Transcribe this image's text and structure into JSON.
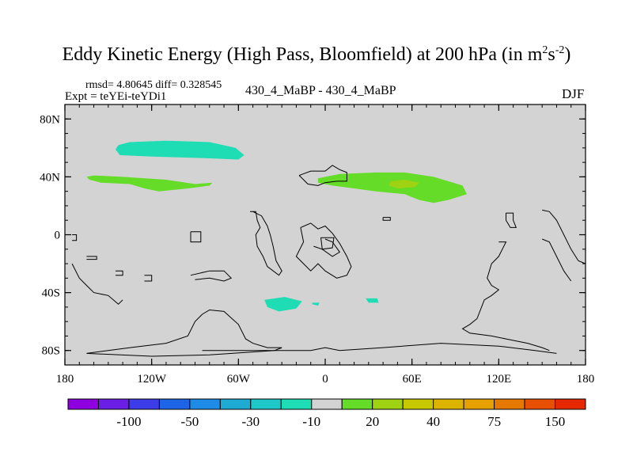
{
  "chart_data": {
    "type": "heatmap",
    "title": "Eddy Kinetic Energy (High Pass, Bloomfield) at 200 hPa (in m",
    "title_units_sup1": "2",
    "title_units_s": "s",
    "title_units_sup2": "-2",
    "title_close": ")",
    "stats_label": "rmsd= 4.80645 diff= 0.328545",
    "expt_label": "Expt = teYEi-teYDi1",
    "comparison_label": "430_4_MaBP - 430_4_MaBP",
    "season": "DJF",
    "x_range": [
      -180,
      180
    ],
    "y_range": [
      -90,
      90
    ],
    "x_ticks": [
      {
        "value": -180,
        "label": "180"
      },
      {
        "value": -120,
        "label": "120W"
      },
      {
        "value": -60,
        "label": "60W"
      },
      {
        "value": 0,
        "label": "0"
      },
      {
        "value": 60,
        "label": "60E"
      },
      {
        "value": 120,
        "label": "120E"
      },
      {
        "value": 180,
        "label": "180"
      }
    ],
    "y_ticks": [
      {
        "value": 80,
        "label": "80N"
      },
      {
        "value": 40,
        "label": "40N"
      },
      {
        "value": 0,
        "label": "0"
      },
      {
        "value": -40,
        "label": "40S"
      },
      {
        "value": -80,
        "label": "80S"
      }
    ],
    "background_color": "#d3d3d3",
    "colorbar": {
      "colors": [
        "#8e00e0",
        "#6a1ee6",
        "#3c3ce8",
        "#1e64e6",
        "#1e8ce6",
        "#1eaad2",
        "#1ec8c8",
        "#1edcb4",
        "#d3d3d3",
        "#64dc28",
        "#a0d214",
        "#c8c800",
        "#dcb400",
        "#e6a000",
        "#e67800",
        "#e65000",
        "#e62800"
      ],
      "labels": [
        {
          "after_box": 1,
          "text": "-100"
        },
        {
          "after_box": 3,
          "text": "-50"
        },
        {
          "after_box": 5,
          "text": "-30"
        },
        {
          "after_box": 7,
          "text": "-10"
        },
        {
          "after_box": 9,
          "text": "20"
        },
        {
          "after_box": 11,
          "text": "40"
        },
        {
          "after_box": 13,
          "text": "75"
        },
        {
          "after_box": 15,
          "text": "150"
        }
      ]
    },
    "anomaly_regions": [
      {
        "name": "north-pacific-negative",
        "level": "-10",
        "color": "#1edcb4",
        "polygon": [
          [
            -143,
            62
          ],
          [
            -135,
            64
          ],
          [
            -110,
            65
          ],
          [
            -80,
            64
          ],
          [
            -62,
            60
          ],
          [
            -56,
            55
          ],
          [
            -60,
            52
          ],
          [
            -85,
            53
          ],
          [
            -120,
            54
          ],
          [
            -142,
            55
          ],
          [
            -145,
            59
          ]
        ]
      },
      {
        "name": "north-pacific-positive",
        "level": "20",
        "color": "#64dc28",
        "polygon": [
          [
            -163,
            38
          ],
          [
            -155,
            36
          ],
          [
            -135,
            35
          ],
          [
            -125,
            32
          ],
          [
            -115,
            30
          ],
          [
            -95,
            32
          ],
          [
            -80,
            34
          ],
          [
            -78,
            36
          ],
          [
            -90,
            35
          ],
          [
            -110,
            38
          ],
          [
            -140,
            40
          ],
          [
            -160,
            41
          ],
          [
            -165,
            40
          ]
        ]
      },
      {
        "name": "eurasia-positive",
        "level": "20",
        "color": "#64dc28",
        "polygon": [
          [
            -5,
            39
          ],
          [
            10,
            42
          ],
          [
            35,
            43
          ],
          [
            55,
            43
          ],
          [
            75,
            40
          ],
          [
            95,
            34
          ],
          [
            98,
            28
          ],
          [
            85,
            24
          ],
          [
            75,
            22
          ],
          [
            65,
            24
          ],
          [
            55,
            28
          ],
          [
            35,
            30
          ],
          [
            20,
            32
          ],
          [
            5,
            34
          ],
          [
            -5,
            36
          ]
        ]
      },
      {
        "name": "eurasia-core",
        "level": "30",
        "color": "#a0d214",
        "polygon": [
          [
            45,
            37
          ],
          [
            55,
            38
          ],
          [
            65,
            36
          ],
          [
            62,
            33
          ],
          [
            50,
            32
          ],
          [
            44,
            34
          ]
        ]
      },
      {
        "name": "south-atlantic-negative",
        "level": "-10",
        "color": "#1edcb4",
        "polygon": [
          [
            -42,
            -45
          ],
          [
            -28,
            -43
          ],
          [
            -16,
            -46
          ],
          [
            -20,
            -51
          ],
          [
            -32,
            -53
          ],
          [
            -40,
            -50
          ]
        ]
      },
      {
        "name": "south-atlantic-small",
        "level": "-10",
        "color": "#1edcb4",
        "polygon": [
          [
            -9,
            -47
          ],
          [
            -4,
            -47
          ],
          [
            -5,
            -49
          ],
          [
            -9,
            -48
          ]
        ]
      },
      {
        "name": "indian-ocean-small",
        "level": "-10",
        "color": "#1edcb4",
        "polygon": [
          [
            28,
            -44
          ],
          [
            36,
            -44
          ],
          [
            37,
            -47
          ],
          [
            30,
            -47
          ]
        ]
      }
    ],
    "land_outlines": [
      [
        [
          -175,
          0
        ],
        [
          -172,
          0
        ],
        [
          -172,
          -4
        ],
        [
          -175,
          -4
        ]
      ],
      [
        [
          -165,
          -15
        ],
        [
          -158,
          -15
        ],
        [
          -158,
          -17
        ],
        [
          -165,
          -17
        ]
      ],
      [
        [
          -175,
          -20
        ],
        [
          -170,
          -30
        ],
        [
          -165,
          -35
        ],
        [
          -160,
          -40
        ],
        [
          -150,
          -42
        ],
        [
          -143,
          -48
        ],
        [
          -140,
          -45
        ]
      ],
      [
        [
          -145,
          -25
        ],
        [
          -140,
          -25
        ],
        [
          -140,
          -28
        ],
        [
          -145,
          -28
        ]
      ],
      [
        [
          -125,
          -28
        ],
        [
          -120,
          -28
        ],
        [
          -120,
          -32
        ],
        [
          -125,
          -32
        ]
      ],
      [
        [
          -52,
          16
        ],
        [
          -48,
          16
        ],
        [
          -47,
          10
        ],
        [
          -45,
          5
        ],
        [
          -48,
          0
        ],
        [
          -47,
          -8
        ],
        [
          -43,
          -15
        ],
        [
          -40,
          -22
        ],
        [
          -32,
          -28
        ],
        [
          -30,
          -25
        ],
        [
          -34,
          -18
        ],
        [
          -36,
          -8
        ],
        [
          -38,
          0
        ],
        [
          -40,
          6
        ],
        [
          -44,
          13
        ],
        [
          -50,
          16
        ]
      ],
      [
        [
          -93,
          2
        ],
        [
          -86,
          2
        ],
        [
          -86,
          -5
        ],
        [
          -93,
          -5
        ],
        [
          -93,
          2
        ]
      ],
      [
        [
          -93,
          -28
        ],
        [
          -80,
          -25
        ],
        [
          -70,
          -25
        ],
        [
          -65,
          -30
        ],
        [
          -70,
          -32
        ],
        [
          -80,
          -30
        ],
        [
          -90,
          -31
        ]
      ],
      [
        [
          -17,
          5
        ],
        [
          -10,
          8
        ],
        [
          -5,
          4
        ],
        [
          0,
          6
        ],
        [
          5,
          1
        ],
        [
          10,
          -6
        ],
        [
          15,
          -15
        ],
        [
          18,
          -22
        ],
        [
          15,
          -28
        ],
        [
          8,
          -30
        ],
        [
          0,
          -25
        ],
        [
          -5,
          -20
        ],
        [
          -10,
          -25
        ],
        [
          -15,
          -20
        ],
        [
          -20,
          -15
        ],
        [
          -15,
          -5
        ],
        [
          -17,
          5
        ]
      ],
      [
        [
          -8,
          -8
        ],
        [
          -2,
          -10
        ],
        [
          5,
          -15
        ],
        [
          10,
          -12
        ],
        [
          5,
          -5
        ],
        [
          0,
          -3
        ]
      ],
      [
        [
          -3,
          -2
        ],
        [
          6,
          -2
        ],
        [
          5,
          -9
        ],
        [
          -2,
          -10
        ],
        [
          -3,
          -2
        ]
      ],
      [
        [
          -18,
          41
        ],
        [
          -10,
          44
        ],
        [
          0,
          44
        ],
        [
          5,
          48
        ],
        [
          10,
          45
        ],
        [
          15,
          43
        ],
        [
          15,
          37
        ],
        [
          8,
          37
        ],
        [
          0,
          36
        ],
        [
          -5,
          34
        ],
        [
          -12,
          35
        ],
        [
          -15,
          38
        ],
        [
          -18,
          41
        ]
      ],
      [
        [
          40,
          12
        ],
        [
          45,
          12
        ],
        [
          45,
          10
        ],
        [
          40,
          10
        ],
        [
          40,
          12
        ]
      ],
      [
        [
          125,
          15
        ],
        [
          130,
          15
        ],
        [
          130,
          10
        ],
        [
          132,
          5
        ],
        [
          128,
          5
        ],
        [
          125,
          10
        ],
        [
          125,
          15
        ]
      ],
      [
        [
          150,
          17
        ],
        [
          155,
          16
        ],
        [
          160,
          10
        ],
        [
          165,
          0
        ],
        [
          170,
          -10
        ],
        [
          175,
          -18
        ],
        [
          180,
          -20
        ]
      ],
      [
        [
          120,
          -5
        ],
        [
          125,
          -5
        ],
        [
          120,
          -15
        ],
        [
          115,
          -20
        ],
        [
          112,
          -30
        ],
        [
          115,
          -35
        ],
        [
          120,
          -38
        ],
        [
          115,
          -42
        ],
        [
          110,
          -45
        ],
        [
          105,
          -58
        ],
        [
          100,
          -62
        ],
        [
          95,
          -65
        ],
        [
          100,
          -68
        ],
        [
          115,
          -70
        ],
        [
          125,
          -72
        ],
        [
          140,
          -75
        ],
        [
          150,
          -78
        ],
        [
          155,
          -80
        ]
      ],
      [
        [
          150,
          -3
        ],
        [
          155,
          -5
        ],
        [
          160,
          -15
        ],
        [
          165,
          -25
        ],
        [
          170,
          -32
        ]
      ],
      [
        [
          -165,
          -82
        ],
        [
          -150,
          -80
        ],
        [
          -135,
          -78
        ],
        [
          -110,
          -75
        ],
        [
          -95,
          -70
        ],
        [
          -90,
          -60
        ],
        [
          -85,
          -55
        ],
        [
          -80,
          -52
        ],
        [
          -70,
          -53
        ],
        [
          -60,
          -62
        ],
        [
          -55,
          -72
        ],
        [
          -50,
          -75
        ],
        [
          -40,
          -78
        ],
        [
          -30,
          -78
        ],
        [
          -35,
          -80
        ],
        [
          -80,
          -83
        ],
        [
          -120,
          -84
        ],
        [
          -165,
          -82
        ]
      ],
      [
        [
          -85,
          -80
        ],
        [
          -30,
          -80
        ],
        [
          -10,
          -80
        ],
        [
          0,
          -78
        ],
        [
          10,
          -80
        ],
        [
          40,
          -78
        ],
        [
          80,
          -75
        ],
        [
          120,
          -77
        ],
        [
          145,
          -80
        ],
        [
          160,
          -82
        ]
      ]
    ]
  }
}
